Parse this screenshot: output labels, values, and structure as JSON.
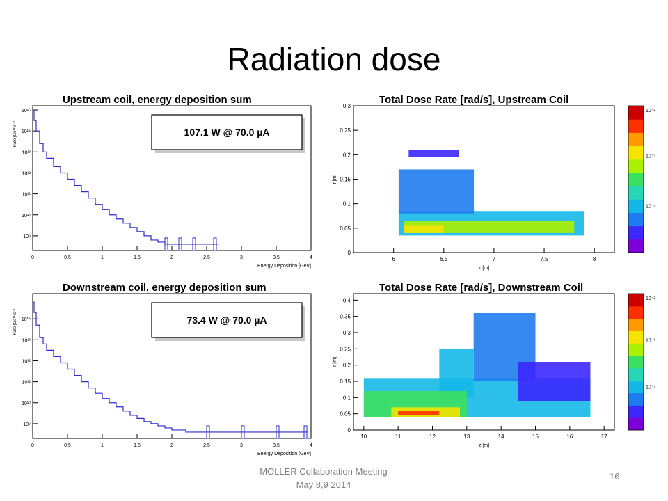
{
  "slide": {
    "title": "Radiation dose",
    "footer_line1": "MOLLER Collaboration  Meeting",
    "footer_line2": "May 8,9 2014",
    "page_number": "16"
  },
  "colors": {
    "histogram_line": "#2d2ec8",
    "frame": "#000000",
    "palette": [
      "#7c00d8",
      "#3c28ff",
      "#1f7cf0",
      "#14b8e8",
      "#26d6b4",
      "#3ce060",
      "#aaf000",
      "#f4e400",
      "#ff9a00",
      "#ff3000",
      "#cc0000"
    ]
  },
  "chart_data": [
    {
      "type": "line",
      "title": "Upstream coil, energy deposition sum",
      "annotation": "107.1 W @ 70.0 µA",
      "xlabel": "Energy Deposition [GeV]",
      "ylabel": "Rate [GeV s⁻¹]",
      "xlim": [
        0,
        4
      ],
      "ylim_log10": [
        8.3,
        15.2
      ],
      "x_ticks": [
        "0",
        "0.5",
        "1",
        "1.5",
        "2",
        "2.5",
        "3",
        "3.5",
        "4"
      ],
      "y_ticks": [
        "10⁹",
        "10¹⁰",
        "10¹¹",
        "10¹²",
        "10¹³",
        "10¹⁴",
        "10¹⁵"
      ],
      "y_tick_values_log10": [
        9,
        10,
        11,
        12,
        13,
        14,
        15
      ],
      "series": [
        {
          "x": [
            0.0,
            0.02,
            0.05,
            0.1,
            0.15,
            0.2,
            0.3,
            0.4,
            0.5,
            0.6,
            0.7,
            0.8,
            0.9,
            1.0,
            1.1,
            1.2,
            1.3,
            1.4,
            1.5,
            1.6,
            1.7,
            1.8,
            1.9,
            2.1,
            2.3,
            2.6
          ],
          "log10_y": [
            15.0,
            14.5,
            14.0,
            13.4,
            13.0,
            12.7,
            12.3,
            12.0,
            11.7,
            11.4,
            11.1,
            10.8,
            10.5,
            10.25,
            10.0,
            9.8,
            9.6,
            9.4,
            9.2,
            9.0,
            8.8,
            8.7,
            8.6,
            8.6,
            8.6,
            8.6
          ]
        }
      ]
    },
    {
      "type": "heatmap",
      "title": "Total Dose Rate [rad/s], Upstream Coil",
      "xlabel": "z [m]",
      "ylabel": "r [m]",
      "xlim": [
        5.6,
        8.2
      ],
      "ylim": [
        0,
        0.3
      ],
      "x_ticks": [
        "6",
        "6.5",
        "7",
        "7.5",
        "8"
      ],
      "y_ticks": [
        "0",
        "0.05",
        "0.1",
        "0.15",
        "0.2",
        "0.25",
        "0.3"
      ],
      "colorbar_ticks": [
        "10⁻²",
        "10⁻³",
        "10⁻⁴"
      ],
      "regions": [
        {
          "z": [
            6.15,
            6.65
          ],
          "r": [
            0.195,
            0.21
          ],
          "level": 0.1
        },
        {
          "z": [
            6.05,
            7.9
          ],
          "r": [
            0.035,
            0.085
          ],
          "level": 0.3
        },
        {
          "z": [
            6.05,
            6.8
          ],
          "r": [
            0.08,
            0.17
          ],
          "level": 0.2
        },
        {
          "z": [
            6.1,
            7.8
          ],
          "r": [
            0.04,
            0.065
          ],
          "level": 0.55
        },
        {
          "z": [
            6.1,
            6.5
          ],
          "r": [
            0.04,
            0.055
          ],
          "level": 0.7
        }
      ]
    },
    {
      "type": "line",
      "title": "Downstream coil, energy deposition sum",
      "annotation": "73.4 W @ 70.0 µA",
      "xlabel": "Energy Deposition [GeV]",
      "ylabel": "Rate [GeV s⁻¹]",
      "xlim": [
        0,
        4
      ],
      "ylim_log10": [
        8.3,
        15.2
      ],
      "x_ticks": [
        "0",
        "0.5",
        "1",
        "1.5",
        "2",
        "2.5",
        "3",
        "3.5",
        "4"
      ],
      "y_ticks": [
        "10⁹",
        "10¹⁰",
        "10¹¹",
        "10¹²",
        "10¹³",
        "10¹⁴"
      ],
      "y_tick_values_log10": [
        9,
        10,
        11,
        12,
        13,
        14
      ],
      "series": [
        {
          "x": [
            0.0,
            0.02,
            0.05,
            0.1,
            0.15,
            0.2,
            0.3,
            0.4,
            0.5,
            0.6,
            0.7,
            0.8,
            0.9,
            1.0,
            1.1,
            1.2,
            1.3,
            1.4,
            1.5,
            1.6,
            1.7,
            1.8,
            1.9,
            2.0,
            2.2,
            2.5,
            3.0,
            3.5,
            3.9
          ],
          "log10_y": [
            14.8,
            14.3,
            13.7,
            13.1,
            12.8,
            12.5,
            12.2,
            11.9,
            11.6,
            11.3,
            11.0,
            10.7,
            10.45,
            10.2,
            10.0,
            9.8,
            9.6,
            9.4,
            9.25,
            9.1,
            9.0,
            8.9,
            8.8,
            8.7,
            8.6,
            8.6,
            8.6,
            8.6,
            8.6
          ]
        }
      ]
    },
    {
      "type": "heatmap",
      "title": "Total Dose Rate [rad/s], Downstream Coil",
      "xlabel": "z [m]",
      "ylabel": "r [m]",
      "xlim": [
        9.7,
        17.3
      ],
      "ylim": [
        0,
        0.42
      ],
      "x_ticks": [
        "10",
        "11",
        "12",
        "13",
        "14",
        "15",
        "16",
        "17"
      ],
      "y_ticks": [
        "0",
        "0.05",
        "0.1",
        "0.15",
        "0.2",
        "0.25",
        "0.3",
        "0.35",
        "0.4"
      ],
      "colorbar_ticks": [
        "10⁻²",
        "10⁻³",
        "10⁻⁴"
      ],
      "regions": [
        {
          "z": [
            10.0,
            16.6
          ],
          "r": [
            0.04,
            0.16
          ],
          "level": 0.25
        },
        {
          "z": [
            13.2,
            15.0
          ],
          "r": [
            0.15,
            0.36
          ],
          "level": 0.2
        },
        {
          "z": [
            12.2,
            13.2
          ],
          "r": [
            0.1,
            0.25
          ],
          "level": 0.3
        },
        {
          "z": [
            14.5,
            16.6
          ],
          "r": [
            0.09,
            0.21
          ],
          "level": 0.1
        },
        {
          "z": [
            10.0,
            13.0
          ],
          "r": [
            0.04,
            0.12
          ],
          "level": 0.5
        },
        {
          "z": [
            10.8,
            12.8
          ],
          "r": [
            0.04,
            0.07
          ],
          "level": 0.7
        },
        {
          "z": [
            11.0,
            12.2
          ],
          "r": [
            0.045,
            0.06
          ],
          "level": 0.9
        }
      ]
    }
  ]
}
